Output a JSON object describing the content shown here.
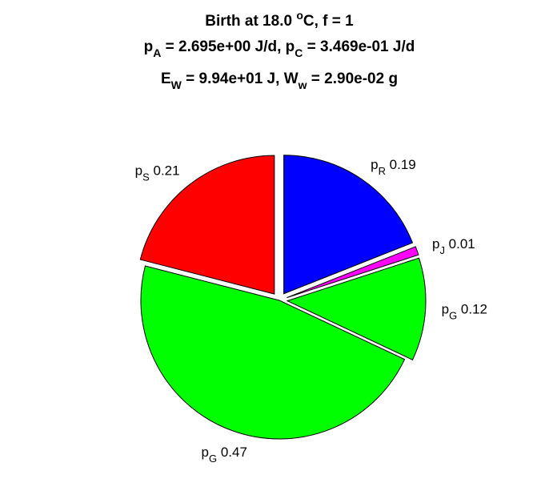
{
  "chart_data": {
    "type": "pie",
    "title": {
      "line1": {
        "before": "Birth at 18.0 ",
        "sup": "o",
        "after": "C, f = 1"
      },
      "line2": {
        "p1": "p",
        "p1_sub": "A",
        "p1_val": " = 2.695e+00 J/d, ",
        "p2": "p",
        "p2_sub": "C",
        "p2_val": " = 3.469e-01 J/d"
      },
      "line3": {
        "e": "E",
        "e_sub": "W",
        "e_val": " = 9.94e+01 J, ",
        "w": "W",
        "w_sub": "w",
        "w_val": " = 2.90e-02 g"
      }
    },
    "slices": [
      {
        "key": "pR",
        "sym": "p",
        "sub": "R",
        "value": 0.19,
        "label_value": "0.19",
        "color": "#0000ff",
        "exploded": true,
        "label_anchor": "start"
      },
      {
        "key": "pJ",
        "sym": "p",
        "sub": "J",
        "value": 0.01,
        "label_value": "0.01",
        "color": "#ff00ff",
        "exploded": true,
        "label_anchor": "start"
      },
      {
        "key": "pG_repro",
        "sym": "p",
        "sub": "G",
        "value": 0.12,
        "label_value": "0.12",
        "color": "#00ff00",
        "exploded": true,
        "label_anchor": "start"
      },
      {
        "key": "pG_growth",
        "sym": "p",
        "sub": "G",
        "value": 0.47,
        "label_value": "0.47",
        "color": "#00ff00",
        "exploded": false,
        "label_anchor": "middle"
      },
      {
        "key": "pS",
        "sym": "p",
        "sub": "S",
        "value": 0.21,
        "label_value": "0.21",
        "color": "#ff0000",
        "exploded": true,
        "label_anchor": "end"
      }
    ]
  }
}
